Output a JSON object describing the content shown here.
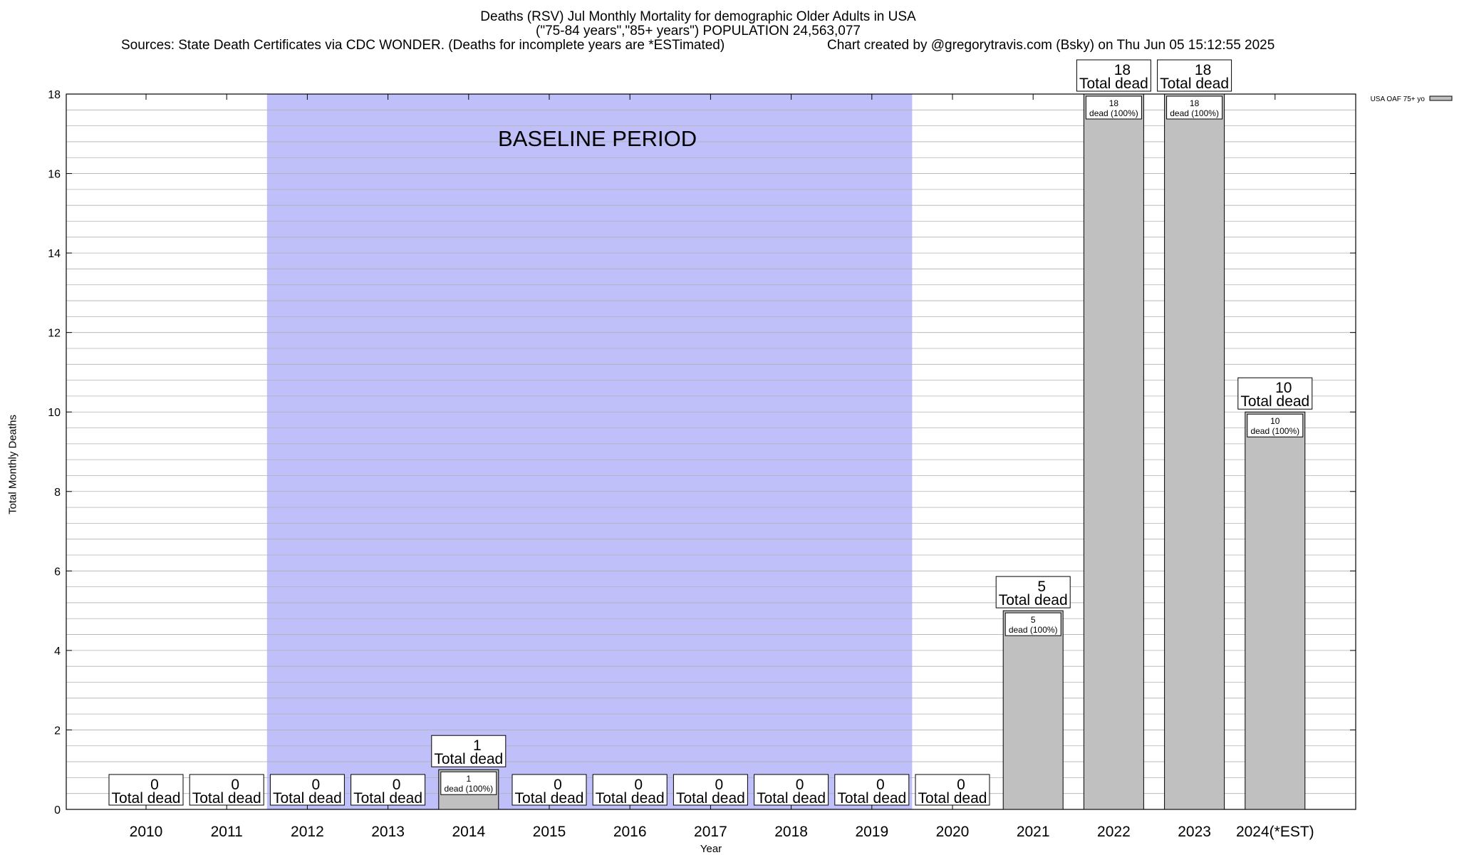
{
  "chart_data": {
    "type": "bar",
    "title": "Deaths (RSV) Jul Monthly Mortality for demographic Older Adults in USA",
    "subtitle": "(\"75-84 years\",\"85+ years\") POPULATION 24,563,077",
    "sources": "Sources: State Death Certificates via CDC WONDER. (Deaths for incomplete years are *ESTimated)",
    "credit": "Chart created by @gregorytravis.com (Bsky) on Thu Jun 05 15:12:55 2025",
    "xlabel": "Year",
    "ylabel": "Total Monthly Deaths",
    "ylim": [
      0,
      18
    ],
    "yticks": [
      0,
      2,
      4,
      6,
      8,
      10,
      12,
      14,
      16,
      18
    ],
    "grid": true,
    "legend": {
      "label": "USA OAF 75+ yo",
      "position": "top-right"
    },
    "baseline_label": "BASELINE PERIOD",
    "baseline_range": [
      "2012",
      "2019"
    ],
    "total_label_suffix": "Total dead",
    "inner_label_suffix": "dead (100%)",
    "categories": [
      "2010",
      "2011",
      "2012",
      "2013",
      "2014",
      "2015",
      "2016",
      "2017",
      "2018",
      "2019",
      "2020",
      "2021",
      "2022",
      "2023",
      "2024(*EST)"
    ],
    "series": [
      {
        "name": "USA OAF 75+ yo",
        "values": [
          0,
          0,
          0,
          0,
          1,
          0,
          0,
          0,
          0,
          0,
          0,
          5,
          18,
          18,
          10
        ]
      }
    ],
    "colors": {
      "bar": "#c0c0c0",
      "baseline": "#bfbffa",
      "grid": "#b0b0b0"
    }
  }
}
